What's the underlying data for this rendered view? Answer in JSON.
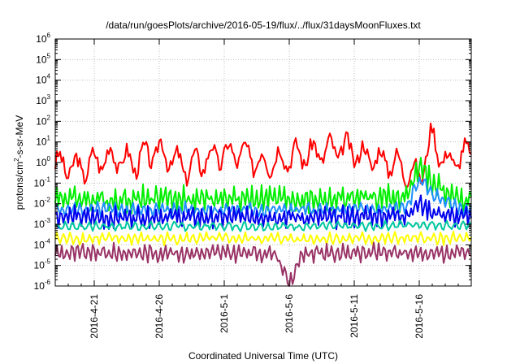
{
  "chart_data": {
    "type": "line",
    "title": "/data/run/goesPlots/archive/2016-05-19/flux/../flux/31daysMoonFluxes.txt",
    "xlabel": "Coordinated Universal Time (UTC)",
    "ylabel": {
      "pre": "protons/cm",
      "sup": "2",
      "post": "-s-sr-MeV"
    },
    "yscale": "log",
    "ylim_exp": [
      -6,
      6
    ],
    "yticks": [
      {
        "base": "10",
        "exp": "-6"
      },
      {
        "base": "10",
        "exp": "-5"
      },
      {
        "base": "10",
        "exp": "-4"
      },
      {
        "base": "10",
        "exp": "-3"
      },
      {
        "base": "10",
        "exp": "-2"
      },
      {
        "base": "10",
        "exp": "-1"
      },
      {
        "base": "10",
        "exp": "0"
      },
      {
        "base": "10",
        "exp": "1"
      },
      {
        "base": "10",
        "exp": "2"
      },
      {
        "base": "10",
        "exp": "3"
      },
      {
        "base": "10",
        "exp": "4"
      },
      {
        "base": "10",
        "exp": "5"
      },
      {
        "base": "10",
        "exp": "6"
      }
    ],
    "xlim": [
      "2016-04-18",
      "2016-05-20"
    ],
    "xticks": [
      "2016-4-21",
      "2016-4-26",
      "2016-5-1",
      "2016-5-6",
      "2016-5-11",
      "2016-5-16"
    ],
    "xtick_dates": [
      "2016-04-21",
      "2016-04-26",
      "2016-05-01",
      "2016-05-06",
      "2016-05-11",
      "2016-05-16"
    ],
    "grid": true,
    "legend": "none",
    "series": [
      {
        "color": "#ff0000",
        "x": [
          "2016-04-18",
          "2016-04-20",
          "2016-04-22",
          "2016-04-24",
          "2016-04-26",
          "2016-04-28",
          "2016-04-30",
          "2016-05-02",
          "2016-05-04",
          "2016-05-06",
          "2016-05-08",
          "2016-05-10",
          "2016-05-12",
          "2016-05-14",
          "2016-05-16",
          "2016-05-17",
          "2016-05-18",
          "2016-05-20"
        ],
        "y": [
          0.8,
          0.5,
          2,
          1,
          4,
          0.5,
          2,
          3,
          1,
          2,
          3,
          5,
          2,
          1,
          0.2,
          20,
          1,
          3
        ]
      },
      {
        "color": "#00ee00",
        "x": [
          "2016-04-18",
          "2016-04-22",
          "2016-04-26",
          "2016-04-30",
          "2016-05-04",
          "2016-05-08",
          "2016-05-12",
          "2016-05-15",
          "2016-05-16",
          "2016-05-17",
          "2016-05-19",
          "2016-05-20"
        ],
        "y": [
          0.02,
          0.015,
          0.02,
          0.015,
          0.02,
          0.015,
          0.02,
          0.02,
          0.6,
          0.1,
          0.015,
          0.02
        ]
      },
      {
        "color": "#1e90ff",
        "x": [
          "2016-04-18",
          "2016-04-22",
          "2016-04-26",
          "2016-04-30",
          "2016-05-04",
          "2016-05-08",
          "2016-05-12",
          "2016-05-15",
          "2016-05-16",
          "2016-05-17",
          "2016-05-19",
          "2016-05-20"
        ],
        "y": [
          0.005,
          0.005,
          0.005,
          0.005,
          0.005,
          0.005,
          0.005,
          0.006,
          0.15,
          0.03,
          0.006,
          0.005
        ]
      },
      {
        "color": "#0000ee",
        "x": [
          "2016-04-18",
          "2016-04-22",
          "2016-04-26",
          "2016-04-30",
          "2016-05-04",
          "2016-05-08",
          "2016-05-12",
          "2016-05-15",
          "2016-05-16",
          "2016-05-17",
          "2016-05-19",
          "2016-05-20"
        ],
        "y": [
          0.0025,
          0.002,
          0.0025,
          0.002,
          0.0025,
          0.002,
          0.0025,
          0.003,
          0.01,
          0.004,
          0.002,
          0.0025
        ]
      },
      {
        "color": "#00c8a0",
        "x": [
          "2016-04-18",
          "2016-04-24",
          "2016-04-30",
          "2016-05-06",
          "2016-05-12",
          "2016-05-16",
          "2016-05-20"
        ],
        "y": [
          0.0008,
          0.0008,
          0.0008,
          0.0008,
          0.0008,
          0.001,
          0.0008
        ]
      },
      {
        "color": "#ffff00",
        "x": [
          "2016-04-18",
          "2016-04-24",
          "2016-04-30",
          "2016-05-06",
          "2016-05-12",
          "2016-05-16",
          "2016-05-20"
        ],
        "y": [
          0.0002,
          0.0002,
          0.0002,
          0.0002,
          0.0002,
          0.0002,
          0.0002
        ]
      },
      {
        "color": "#993366",
        "x": [
          "2016-04-18",
          "2016-04-24",
          "2016-04-30",
          "2016-05-05",
          "2016-05-06",
          "2016-05-07",
          "2016-05-12",
          "2016-05-16",
          "2016-05-20"
        ],
        "y": [
          4e-05,
          4e-05,
          4e-05,
          4e-05,
          1e-06,
          4e-05,
          4e-05,
          4e-05,
          4e-05
        ]
      }
    ]
  }
}
